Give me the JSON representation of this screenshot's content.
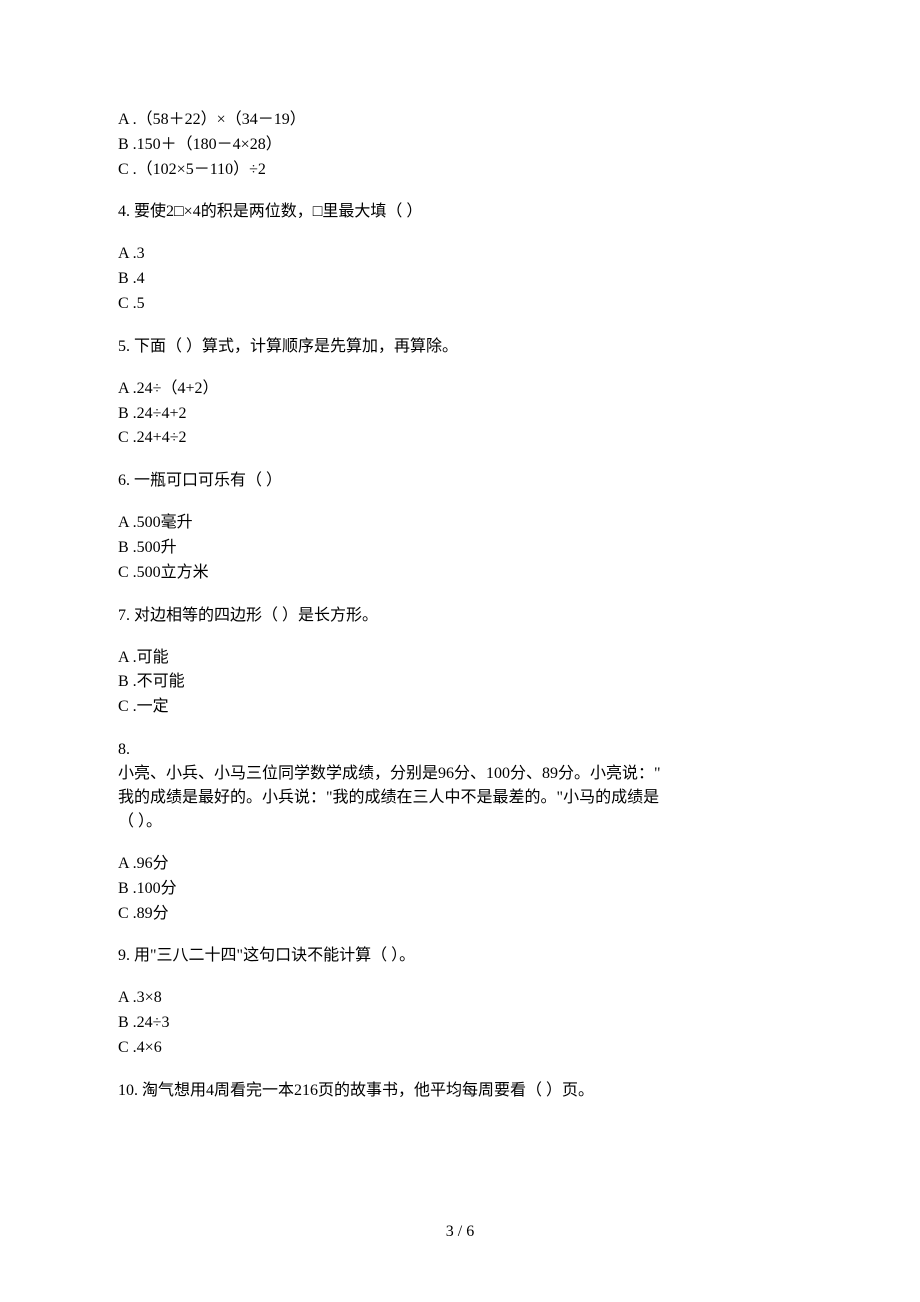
{
  "q3": {
    "opts": {
      "a": "A .（58＋22）×（34－19）",
      "b": "B .150＋（180－4×28）",
      "c": "C .（102×5－110）÷2"
    }
  },
  "q4": {
    "stem": "4.  要使2□×4的积是两位数，□里最大填（   ）",
    "opts": {
      "a": "A .3",
      "b": "B .4",
      "c": "C .5"
    }
  },
  "q5": {
    "stem": "5.  下面（   ）算式，计算顺序是先算加，再算除。",
    "opts": {
      "a": "A .24÷（4+2）",
      "b": "B .24÷4+2",
      "c": "C .24+4÷2"
    }
  },
  "q6": {
    "stem": "6.  一瓶可口可乐有（   ）",
    "opts": {
      "a": "A .500毫升",
      "b": "B .500升",
      "c": "C .500立方米"
    }
  },
  "q7": {
    "stem": "7.  对边相等的四边形（   ）是长方形。",
    "opts": {
      "a": "A .可能",
      "b": "B .不可能",
      "c": "C .一定"
    }
  },
  "q8": {
    "number": "8.",
    "line1": "小亮、小兵、小马三位同学数学成绩，分别是96分、100分、89分。小亮说：\"",
    "line2": "我的成绩是最好的。小兵说：\"我的成绩在三人中不是最差的。\"小马的成绩是",
    "line3": "（    ）。",
    "opts": {
      "a": "A .96分",
      "b": "B .100分",
      "c": "C .89分"
    }
  },
  "q9": {
    "stem": "9.  用\"三八二十四\"这句口诀不能计算（   ）。",
    "opts": {
      "a": "A .3×8",
      "b": "B .24÷3",
      "c": "C .4×6"
    }
  },
  "q10": {
    "stem": "10.  淘气想用4周看完一本216页的故事书，他平均每周要看（   ）页。"
  },
  "footer": {
    "page": "3 / 6"
  }
}
